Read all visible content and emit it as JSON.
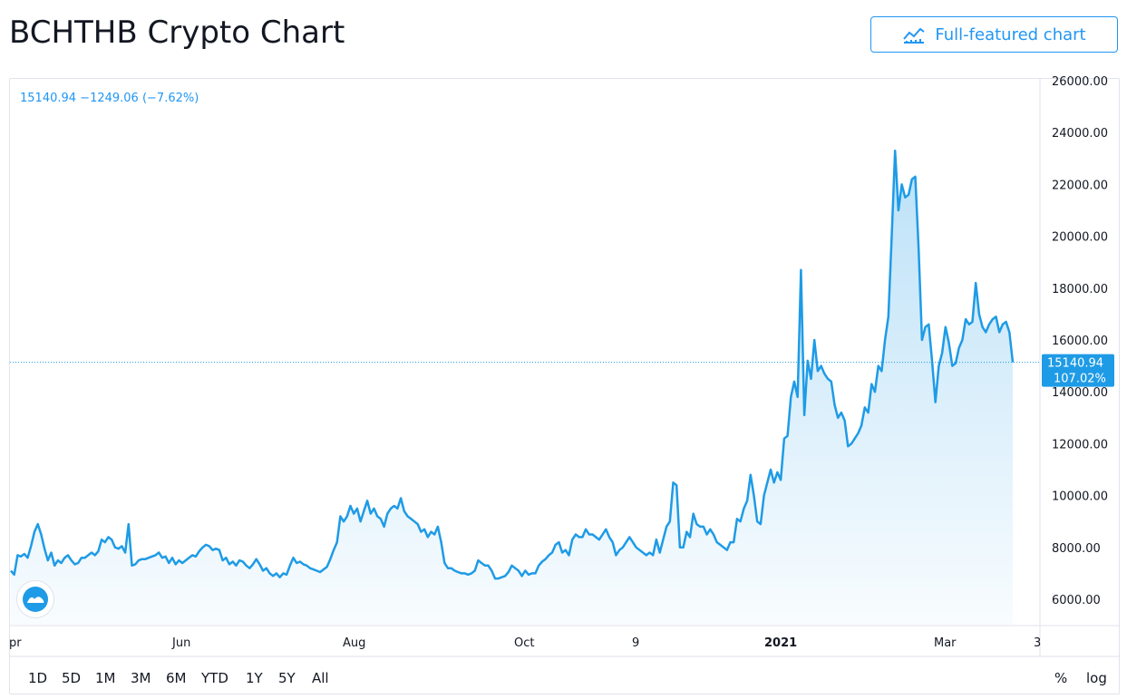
{
  "header": {
    "title": "BCHTHB Crypto Chart",
    "full_chart_label": "Full-featured chart"
  },
  "legend": {
    "last": "15140.94",
    "change": "−1249.06",
    "change_pct": "(−7.62%)"
  },
  "price_badge": {
    "price": "15140.94",
    "pct": "107.02%"
  },
  "ranges": [
    "1D",
    "5D",
    "1M",
    "3M",
    "6M",
    "YTD",
    "1Y",
    "5Y",
    "All"
  ],
  "scale_buttons": {
    "percent": "%",
    "log": "log"
  },
  "colors": {
    "line": "#1e9be6",
    "badge": "#1e9be6",
    "accent": "#2196f3"
  },
  "chart_data": {
    "type": "area",
    "symbol": "BCHTHB",
    "y_tick_labels": [
      "26000.00",
      "24000.00",
      "22000.00",
      "20000.00",
      "18000.00",
      "16000.00",
      "14000.00",
      "12000.00",
      "10000.00",
      "8000.00",
      "6000.00"
    ],
    "x_tick_labels": [
      {
        "label": "pr",
        "bold": false
      },
      {
        "label": "Jun",
        "bold": false
      },
      {
        "label": "Aug",
        "bold": false
      },
      {
        "label": "Oct",
        "bold": false
      },
      {
        "label": "9",
        "bold": false
      },
      {
        "label": "2021",
        "bold": true
      },
      {
        "label": "Mar",
        "bold": false
      },
      {
        "label": "3",
        "bold": false
      }
    ],
    "ylim": [
      5000,
      26000
    ],
    "last_value": 15140.94,
    "grid": false,
    "series": [
      {
        "values": [
          7100,
          6950,
          7700,
          7650,
          7750,
          7600,
          8050,
          8600,
          8900,
          8500,
          7950,
          7500,
          7800,
          7300,
          7500,
          7400,
          7600,
          7700,
          7500,
          7350,
          7400,
          7600,
          7600,
          7700,
          7800,
          7700,
          7850,
          8300,
          8200,
          8400,
          8300,
          8000,
          7950,
          8050,
          7800,
          8900,
          7300,
          7350,
          7500,
          7550,
          7550,
          7600,
          7650,
          7700,
          7800,
          7600,
          7650,
          7400,
          7600,
          7350,
          7500,
          7400,
          7500,
          7600,
          7700,
          7650,
          7850,
          8000,
          8100,
          8050,
          7900,
          7950,
          7900,
          7500,
          7600,
          7350,
          7450,
          7300,
          7500,
          7450,
          7300,
          7200,
          7350,
          7550,
          7350,
          7100,
          7200,
          7000,
          6900,
          7000,
          6850,
          7000,
          6950,
          7300,
          7600,
          7400,
          7450,
          7350,
          7300,
          7200,
          7150,
          7100,
          7050,
          7150,
          7250,
          7550,
          7900,
          8200,
          9200,
          9000,
          9200,
          9600,
          9300,
          9500,
          9000,
          9400,
          9800,
          9300,
          9500,
          9200,
          9100,
          8800,
          9300,
          9500,
          9600,
          9500,
          9900,
          9400,
          9200,
          9100,
          9000,
          8900,
          8600,
          8700,
          8400,
          8600,
          8500,
          8800,
          8200,
          7400,
          7200,
          7200,
          7100,
          7050,
          7000,
          7000,
          6950,
          7000,
          7100,
          7500,
          7400,
          7300,
          7300,
          7100,
          6800,
          6800,
          6850,
          6900,
          7050,
          7300,
          7200,
          7100,
          6900,
          7100,
          6950,
          7000,
          7000,
          7300,
          7450,
          7550,
          7700,
          7800,
          8100,
          8200,
          7800,
          7900,
          7700,
          8300,
          8500,
          8400,
          8400,
          8700,
          8500,
          8500,
          8400,
          8300,
          8500,
          8700,
          8400,
          8200,
          7700,
          7900,
          8000,
          8200,
          8400,
          8200,
          8000,
          7900,
          7800,
          7700,
          7800,
          7700,
          8300,
          7800,
          8300,
          8800,
          9000,
          10500,
          10400,
          8000,
          8000,
          8600,
          8400,
          9300,
          8900,
          8800,
          8800,
          8500,
          8700,
          8500,
          8200,
          8100,
          8000,
          7900,
          8200,
          8200,
          9100,
          9000,
          9500,
          9800,
          10800,
          10000,
          9000,
          8900,
          10000,
          10500,
          11000,
          10500,
          10900,
          10600,
          12200,
          12300,
          13800,
          14400,
          13800,
          18700,
          13100,
          15200,
          14500,
          16000,
          14800,
          15000,
          14700,
          14500,
          14400,
          13500,
          13000,
          13200,
          12900,
          11900,
          12000,
          12200,
          12400,
          12700,
          13400,
          13200,
          14300,
          14000,
          15000,
          14800,
          16000,
          16900,
          20000,
          23300,
          21000,
          22000,
          21500,
          21600,
          22200,
          22300,
          19500,
          16000,
          16500,
          16600,
          15200,
          13600,
          15000,
          15500,
          16500,
          15900,
          15000,
          15100,
          15700,
          16000,
          16800,
          16600,
          16700,
          18200,
          17000,
          16500,
          16300,
          16600,
          16800,
          16900,
          16300,
          16600,
          16700,
          16300,
          15140.94
        ],
        "color": "#1e9be6"
      }
    ]
  }
}
